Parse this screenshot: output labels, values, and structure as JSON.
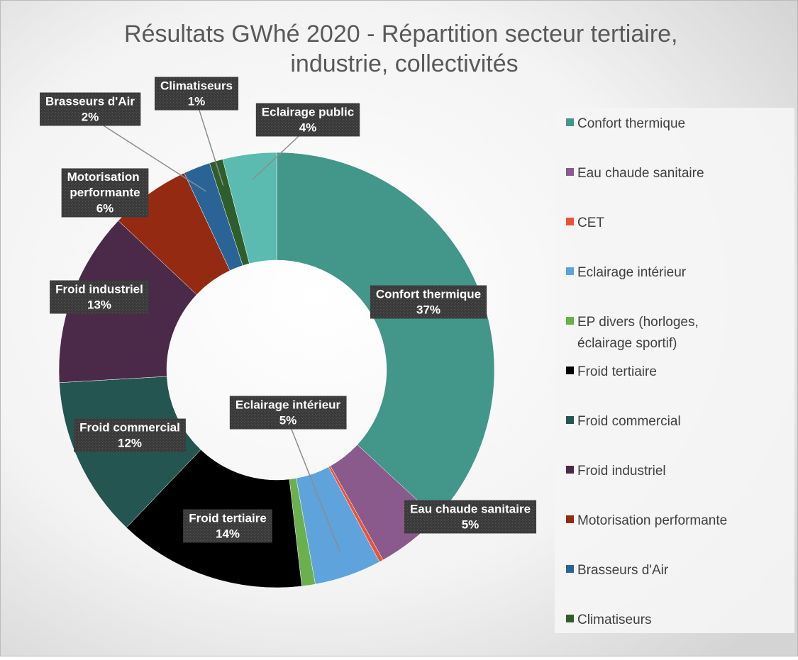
{
  "chart_data": {
    "type": "donut",
    "title": "Résultats GWhé 2020 - Répartition secteur tertiaire, industrie, collectivités",
    "categories": [
      "Confort thermique",
      "Eau chaude sanitaire",
      "CET",
      "Eclairage intérieur",
      "EP divers (horloges, éclairage sportif)",
      "Froid tertiaire",
      "Froid commercial",
      "Froid industriel",
      "Motorisation performante",
      "Brasseurs d'Air",
      "Climatiseurs",
      "Eclairage public"
    ],
    "values": [
      37,
      5,
      0.3,
      5,
      1,
      14,
      12,
      13,
      6,
      2,
      1,
      4
    ],
    "value_labels": [
      "37%",
      "5%",
      null,
      "5%",
      null,
      "14%",
      "12%",
      "13%",
      "6%",
      "2%",
      "1%",
      "4%"
    ],
    "colors": [
      "#43968a",
      "#8a5a8c",
      "#e8533a",
      "#5fa3dc",
      "#6ab04c",
      "#000000",
      "#245550",
      "#4b2a49",
      "#952a12",
      "#2a6496",
      "#2f5e2c",
      "#5cbbb0"
    ],
    "legend": "right"
  }
}
